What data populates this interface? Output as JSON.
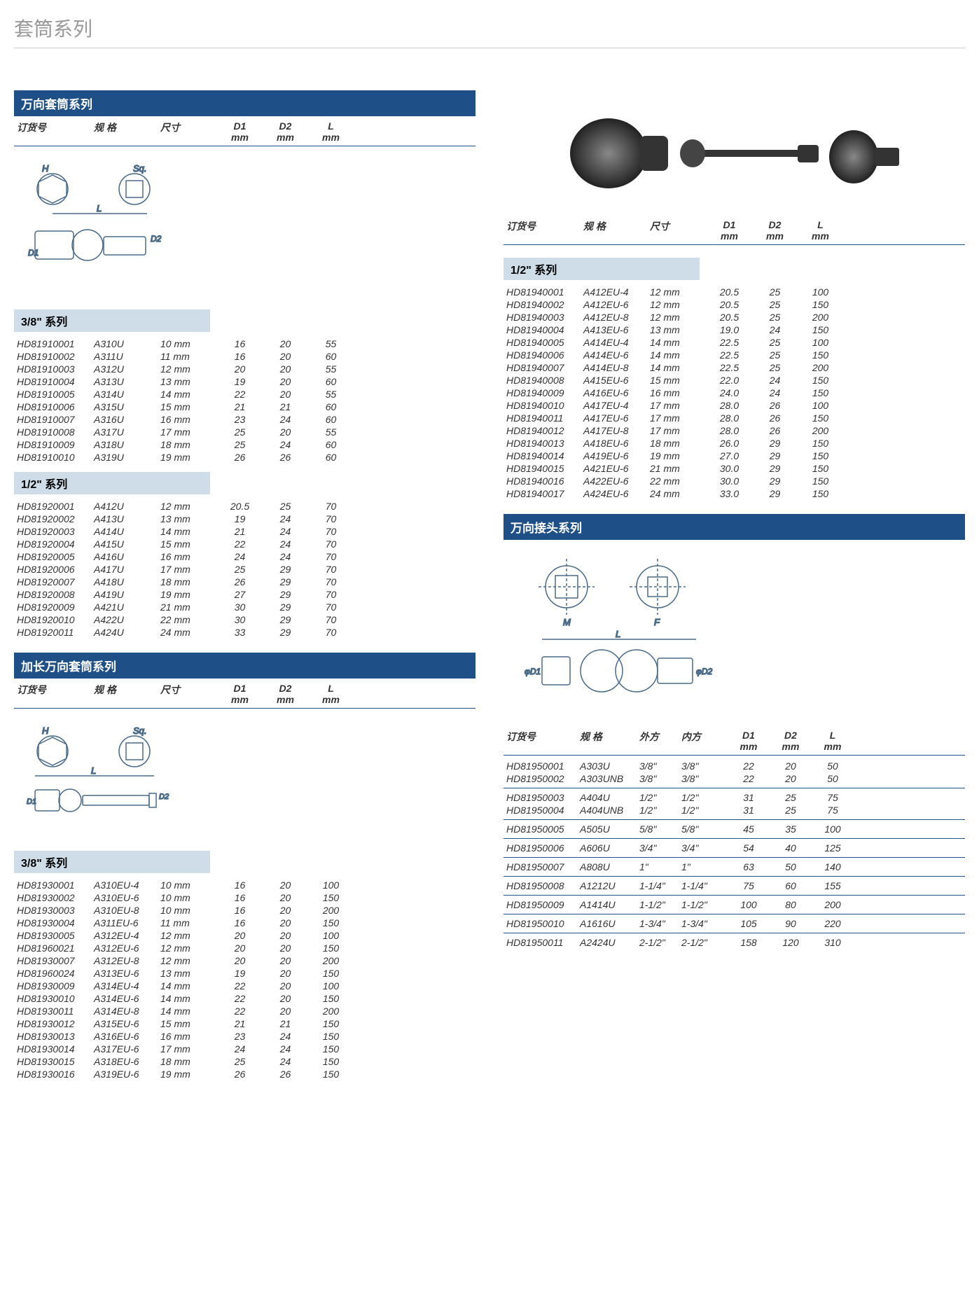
{
  "page_title": "套筒系列",
  "section1": {
    "title": "万向套筒系列",
    "headers": [
      "订货号",
      "规 格",
      "尺寸",
      "D1\nmm",
      "D2\nmm",
      "L\nmm"
    ],
    "sub1": "3/8\" 系列",
    "rows1": [
      [
        "HD81910001",
        "A310U",
        "10 mm",
        "16",
        "20",
        "55"
      ],
      [
        "HD81910002",
        "A311U",
        "11 mm",
        "16",
        "20",
        "60"
      ],
      [
        "HD81910003",
        "A312U",
        "12 mm",
        "20",
        "20",
        "55"
      ],
      [
        "HD81910004",
        "A313U",
        "13 mm",
        "19",
        "20",
        "60"
      ],
      [
        "HD81910005",
        "A314U",
        "14 mm",
        "22",
        "20",
        "55"
      ],
      [
        "HD81910006",
        "A315U",
        "15 mm",
        "21",
        "21",
        "60"
      ],
      [
        "HD81910007",
        "A316U",
        "16 mm",
        "23",
        "24",
        "60"
      ],
      [
        "HD81910008",
        "A317U",
        "17 mm",
        "25",
        "20",
        "55"
      ],
      [
        "HD81910009",
        "A318U",
        "18 mm",
        "25",
        "24",
        "60"
      ],
      [
        "HD81910010",
        "A319U",
        "19 mm",
        "26",
        "26",
        "60"
      ]
    ],
    "sub2": "1/2\" 系列",
    "rows2": [
      [
        "HD81920001",
        "A412U",
        "12 mm",
        "20.5",
        "25",
        "70"
      ],
      [
        "HD81920002",
        "A413U",
        "13 mm",
        "19",
        "24",
        "70"
      ],
      [
        "HD81920003",
        "A414U",
        "14 mm",
        "21",
        "24",
        "70"
      ],
      [
        "HD81920004",
        "A415U",
        "15 mm",
        "22",
        "24",
        "70"
      ],
      [
        "HD81920005",
        "A416U",
        "16 mm",
        "24",
        "24",
        "70"
      ],
      [
        "HD81920006",
        "A417U",
        "17 mm",
        "25",
        "29",
        "70"
      ],
      [
        "HD81920007",
        "A418U",
        "18 mm",
        "26",
        "29",
        "70"
      ],
      [
        "HD81920008",
        "A419U",
        "19 mm",
        "27",
        "29",
        "70"
      ],
      [
        "HD81920009",
        "A421U",
        "21 mm",
        "30",
        "29",
        "70"
      ],
      [
        "HD81920010",
        "A422U",
        "22 mm",
        "30",
        "29",
        "70"
      ],
      [
        "HD81920011",
        "A424U",
        "24 mm",
        "33",
        "29",
        "70"
      ]
    ]
  },
  "section2": {
    "title": "加长万向套筒系列",
    "headers": [
      "订货号",
      "规 格",
      "尺寸",
      "D1\nmm",
      "D2\nmm",
      "L\nmm"
    ],
    "sub1": "3/8\" 系列",
    "rows1": [
      [
        "HD81930001",
        "A310EU-4",
        "10 mm",
        "16",
        "20",
        "100"
      ],
      [
        "HD81930002",
        "A310EU-6",
        "10 mm",
        "16",
        "20",
        "150"
      ],
      [
        "HD81930003",
        "A310EU-8",
        "10 mm",
        "16",
        "20",
        "200"
      ],
      [
        "HD81930004",
        "A311EU-6",
        "11 mm",
        "16",
        "20",
        "150"
      ],
      [
        "HD81930005",
        "A312EU-4",
        "12 mm",
        "20",
        "20",
        "100"
      ],
      [
        "HD81960021",
        "A312EU-6",
        "12 mm",
        "20",
        "20",
        "150"
      ],
      [
        "HD81930007",
        "A312EU-8",
        "12 mm",
        "20",
        "20",
        "200"
      ],
      [
        "HD81960024",
        "A313EU-6",
        "13 mm",
        "19",
        "20",
        "150"
      ],
      [
        "HD81930009",
        "A314EU-4",
        "14 mm",
        "22",
        "20",
        "100"
      ],
      [
        "HD81930010",
        "A314EU-6",
        "14 mm",
        "22",
        "20",
        "150"
      ],
      [
        "HD81930011",
        "A314EU-8",
        "14 mm",
        "22",
        "20",
        "200"
      ],
      [
        "HD81930012",
        "A315EU-6",
        "15 mm",
        "21",
        "21",
        "150"
      ],
      [
        "HD81930013",
        "A316EU-6",
        "16 mm",
        "23",
        "24",
        "150"
      ],
      [
        "HD81930014",
        "A317EU-6",
        "17 mm",
        "24",
        "24",
        "150"
      ],
      [
        "HD81930015",
        "A318EU-6",
        "18 mm",
        "25",
        "24",
        "150"
      ],
      [
        "HD81930016",
        "A319EU-6",
        "19 mm",
        "26",
        "26",
        "150"
      ]
    ]
  },
  "section3": {
    "headers": [
      "订货号",
      "规 格",
      "尺寸",
      "D1\nmm",
      "D2\nmm",
      "L\nmm"
    ],
    "sub1": "1/2\" 系列",
    "rows1": [
      [
        "HD81940001",
        "A412EU-4",
        "12 mm",
        "20.5",
        "25",
        "100"
      ],
      [
        "HD81940002",
        "A412EU-6",
        "12 mm",
        "20.5",
        "25",
        "150"
      ],
      [
        "HD81940003",
        "A412EU-8",
        "12 mm",
        "20.5",
        "25",
        "200"
      ],
      [
        "HD81940004",
        "A413EU-6",
        "13 mm",
        "19.0",
        "24",
        "150"
      ],
      [
        "HD81940005",
        "A414EU-4",
        "14 mm",
        "22.5",
        "25",
        "100"
      ],
      [
        "HD81940006",
        "A414EU-6",
        "14 mm",
        "22.5",
        "25",
        "150"
      ],
      [
        "HD81940007",
        "A414EU-8",
        "14 mm",
        "22.5",
        "25",
        "200"
      ],
      [
        "HD81940008",
        "A415EU-6",
        "15 mm",
        "22.0",
        "24",
        "150"
      ],
      [
        "HD81940009",
        "A416EU-6",
        "16 mm",
        "24.0",
        "24",
        "150"
      ],
      [
        "HD81940010",
        "A417EU-4",
        "17 mm",
        "28.0",
        "26",
        "100"
      ],
      [
        "HD81940011",
        "A417EU-6",
        "17 mm",
        "28.0",
        "26",
        "150"
      ],
      [
        "HD81940012",
        "A417EU-8",
        "17 mm",
        "28.0",
        "26",
        "200"
      ],
      [
        "HD81940013",
        "A418EU-6",
        "18 mm",
        "26.0",
        "29",
        "150"
      ],
      [
        "HD81940014",
        "A419EU-6",
        "19 mm",
        "27.0",
        "29",
        "150"
      ],
      [
        "HD81940015",
        "A421EU-6",
        "21 mm",
        "30.0",
        "29",
        "150"
      ],
      [
        "HD81940016",
        "A422EU-6",
        "22 mm",
        "30.0",
        "29",
        "150"
      ],
      [
        "HD81940017",
        "A424EU-6",
        "24 mm",
        "33.0",
        "29",
        "150"
      ]
    ]
  },
  "section4": {
    "title": "万向接头系列",
    "headers": [
      "订货号",
      "规 格",
      "外方",
      "内方",
      "D1\nmm",
      "D2\nmm",
      "L\nmm"
    ],
    "groups": [
      [
        [
          "HD81950001",
          "A303U",
          "3/8\"",
          "3/8\"",
          "22",
          "20",
          "50"
        ],
        [
          "HD81950002",
          "A303UNB",
          "3/8\"",
          "3/8\"",
          "22",
          "20",
          "50"
        ]
      ],
      [
        [
          "HD81950003",
          "A404U",
          "1/2\"",
          "1/2\"",
          "31",
          "25",
          "75"
        ],
        [
          "HD81950004",
          "A404UNB",
          "1/2\"",
          "1/2\"",
          "31",
          "25",
          "75"
        ]
      ],
      [
        [
          "HD81950005",
          "A505U",
          "5/8\"",
          "5/8\"",
          "45",
          "35",
          "100"
        ]
      ],
      [
        [
          "HD81950006",
          "A606U",
          "3/4\"",
          "3/4\"",
          "54",
          "40",
          "125"
        ]
      ],
      [
        [
          "HD81950007",
          "A808U",
          "1\"",
          "1\"",
          "63",
          "50",
          "140"
        ]
      ],
      [
        [
          "HD81950008",
          "A1212U",
          "1-1/4\"",
          "1-1/4\"",
          "75",
          "60",
          "155"
        ]
      ],
      [
        [
          "HD81950009",
          "A1414U",
          "1-1/2\"",
          "1-1/2\"",
          "100",
          "80",
          "200"
        ]
      ],
      [
        [
          "HD81950010",
          "A1616U",
          "1-3/4\"",
          "1-3/4\"",
          "105",
          "90",
          "220"
        ]
      ],
      [
        [
          "HD81950011",
          "A2424U",
          "2-1/2\"",
          "2-1/2\"",
          "158",
          "120",
          "310"
        ]
      ]
    ]
  },
  "diagram_labels": {
    "H": "H",
    "Sq": "Sq.",
    "L": "L",
    "D1": "D1",
    "D2": "D2",
    "M": "M",
    "F": "F",
    "phiD1": "φD1",
    "phiD2": "φD2"
  }
}
